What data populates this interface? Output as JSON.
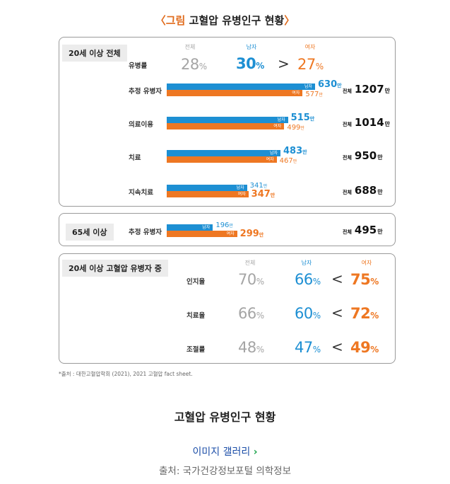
{
  "figure": {
    "title_open": "〈",
    "title_label": "그림",
    "title_text": " 고혈압 유병인구 현황",
    "title_close": "〉"
  },
  "colors": {
    "male": "#1d8fd3",
    "female": "#ee7722",
    "total": "#a5a5a5"
  },
  "chart_data": {
    "type": "bar",
    "unit": "만",
    "sections": [
      {
        "tag": "20세 이상 전체",
        "columns": {
          "total": "전체",
          "male": "남자",
          "female": "여자"
        },
        "prevalence": {
          "label": "유병률",
          "total": "28",
          "male": "30",
          "comparator": ">",
          "female": "27",
          "pct": "%"
        },
        "rows": [
          {
            "label": "추정 유병자",
            "male": 630,
            "female": 577,
            "total": "1207"
          },
          {
            "label": "의료이용",
            "male": 515,
            "female": 499,
            "total": "1014"
          },
          {
            "label": "치료",
            "male": 483,
            "female": 467,
            "total": "950"
          },
          {
            "label": "지속치료",
            "male": 341,
            "female": 347,
            "total": "688"
          }
        ]
      },
      {
        "tag": "65세 이상",
        "rows": [
          {
            "label": "추정 유병자",
            "male": 196,
            "female": 299,
            "total": "495"
          }
        ]
      },
      {
        "tag": "20세 이상 고혈압 유병자 중",
        "columns": {
          "total": "전체",
          "male": "남자",
          "female": "여자"
        },
        "rates": [
          {
            "label": "인지율",
            "total": "70",
            "male": "66",
            "comparator": "<",
            "female": "75"
          },
          {
            "label": "치료율",
            "total": "66",
            "male": "60",
            "comparator": "<",
            "female": "72"
          },
          {
            "label": "조절률",
            "total": "48",
            "male": "47",
            "comparator": "<",
            "female": "49"
          }
        ]
      }
    ],
    "bar_labels": {
      "male": "남자",
      "female": "여자",
      "total": "전체",
      "unit": "만",
      "pct": "%"
    }
  },
  "source_note": "*출처 : 대한고혈압학회 (2021), 2021 고혈압 fact sheet.",
  "caption": "고혈압 유병인구 현황",
  "gallery_link": "이미지 갤러리",
  "gallery_chevron": "›",
  "credit": "출처: 국가건강정보포털 의학정보"
}
